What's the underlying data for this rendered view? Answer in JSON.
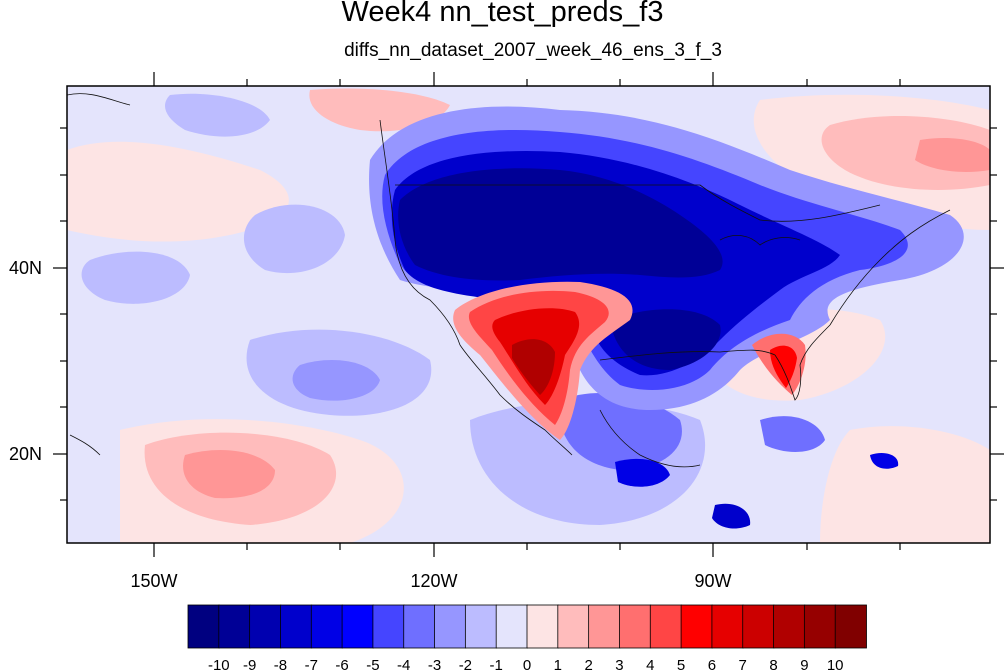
{
  "header": {
    "title": "Week4 nn_test_preds_f3",
    "subtitle": "diffs_nn_dataset_2007_week_46_ens_3_f_3"
  },
  "axes": {
    "lon_labels": [
      "150W",
      "120W",
      "90W"
    ],
    "lat_labels": [
      "40N",
      "20N"
    ]
  },
  "colorbar": {
    "levels": [
      "-10",
      "-9",
      "-8",
      "-7",
      "-6",
      "-5",
      "-4",
      "-3",
      "-2",
      "-1",
      "0",
      "1",
      "2",
      "3",
      "4",
      "5",
      "6",
      "7",
      "8",
      "9",
      "10"
    ],
    "colors": [
      "#000080",
      "#000096",
      "#0000b0",
      "#0000cc",
      "#0000e6",
      "#0000ff",
      "#4545ff",
      "#6f6fff",
      "#9696ff",
      "#bcbcff",
      "#e4e4fc",
      "#fde4e4",
      "#ffbcbc",
      "#ff9696",
      "#ff6f6f",
      "#ff4545",
      "#ff0000",
      "#e60000",
      "#cc0000",
      "#b00000",
      "#960000",
      "#800000"
    ]
  }
}
